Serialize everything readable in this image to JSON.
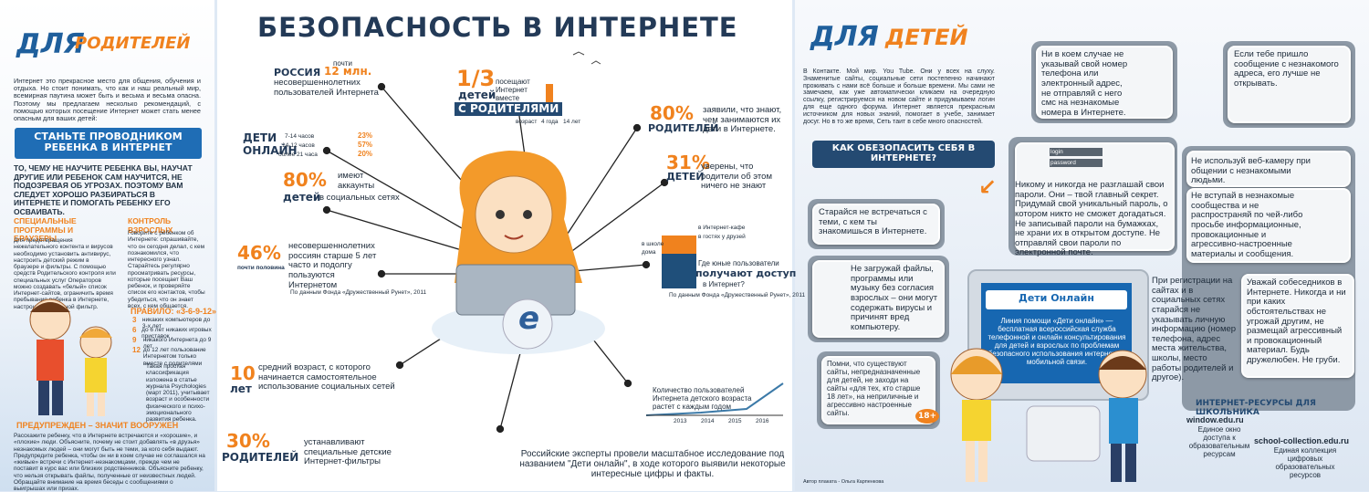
{
  "parents": {
    "title_a": "ДЛЯ",
    "title_b": "РОДИТЕЛЕЙ",
    "intro": "Интернет это прекрасное место для общения, обучения и отдыха. Но стоит понимать, что как и наш реальный мир, всемирная паутина может быть и весьма и весьма опасна. Поэтому мы предлагаем несколько рекомендаций, с помощью которых посещение Интернет может стать менее опасным для ваших детей:",
    "guide": "СТАНЬТЕ ПРОВОДНИКОМ РЕБЕНКА В ИНТЕРНЕТ",
    "guide_text": "ТО, ЧЕМУ НЕ НАУЧИТЕ РЕБЕНКА ВЫ, НАУЧАТ ДРУГИЕ ИЛИ РЕБЕНОК САМ НАУЧИТСЯ, НЕ ПОДОЗРЕВАЯ ОБ УГРОЗАХ. ПОЭТОМУ ВАМ СЛЕДУЕТ ХОРОШО РАЗБИРАТЬСЯ В ИНТЕРНЕТЕ И ПОМОГАТЬ РЕБЕНКУ ЕГО ОСВАИВАТЬ.",
    "programs_title": "СПЕЦИАЛЬНЫЕ ПРОГРАММЫ И БРАУЗЕРЫ",
    "programs_text": "Для предотвращения нежелательного контента и вирусов необходимо установить антивирус, настроить детский режим в браузере и фильтры. С помощью средств Родительского контроля или специальных услуг Операторов можно создавать «белый» список Интернет-сайтов, ограничить время пребывания ребенка в Интернете, настроить возрастной фильтр.",
    "control_title": "КОНТРОЛЬ ВЗРОСЛЫХ",
    "control_text": "Говорите с ребенком об Интернете: спрашивайте, что он сегодня делал, с кем познакомился, что интересного узнал. Старайтесь регулярно просматривать ресурсы, которые посещает Ваш ребенок, и проверяйте список его контактов, чтобы убедиться, что он знает всех, с кем общается.",
    "rule_title": "ПРАВИЛО: «3-6-9-12»",
    "rule_nums": [
      "3",
      "6",
      "9",
      "12"
    ],
    "rule_items": [
      "никаких компьютеров до 3-х лет",
      "до 6 лет никаких игровых приставок",
      "никакого Интернета до 9 лет",
      "до 12 лет пользование Интернетом только вместе с родителями"
    ],
    "rule_note": "Такая простая классификация изложена в статье журнала Psychologies (март 2011), учитывает возраст и особенности физического и психо-эмоционального развития ребенка.",
    "warned_title": "ПРЕДУПРЕЖДЕН – ЗНАЧИТ ВООРУЖЕН",
    "warned_text": "Расскажите ребенку, что в Интернете встречаются и «хорошие», и «плохие» люди. Объясните, почему не стоит добавлять «в друзья» незнакомых людей – они могут быть не теми, за кого себя выдают. Предупредите ребенка, чтобы он ни в коем случае не соглашался на «живые» встречи с Интернет-незнакомцами, прежде чем не поставит в курс вас или близких родственников. Объясните ребенку, что нельзя открывать файлы, полученные от неизвестных людей. Обращайте внимание на время беседы с сообщениями о выигрышах или призах."
  },
  "center": {
    "title": "БЕЗОПАСНОСТЬ В ИНТЕРНЕТЕ",
    "russia": "РОССИЯ",
    "almost": "почти",
    "mln": "12 млн.",
    "russia_text": "несовершеннолетних пользователей Интернета",
    "third": "1/3",
    "third_kids": "детей",
    "third_text": "посещают Интернет вместе",
    "third_parents": "С РОДИТЕЛЯМИ",
    "third_age": "возраст",
    "third_a1": "4 года",
    "third_a2": "14 лет",
    "p80": "80%",
    "p80_label": "РОДИТЕЛЕЙ",
    "p80_text": "заявили, что знают, чем занимаются их дети в Интернете.",
    "online_a": "ДЕТИ",
    "online_b": "ОНЛАЙН",
    "online_rows": [
      [
        "7-14 часов",
        "23%"
      ],
      [
        "14-12 часов",
        "57%"
      ],
      [
        "более 21 часа",
        "20%"
      ]
    ],
    "k80": "80%",
    "k80_text": "имеют аккаунты",
    "k80_kids": "детей",
    "k80_social": "в социальных сетях",
    "p31": "31%",
    "p31_label": "ДЕТЕЙ",
    "p31_text": "уверены, что родители об этом ничего не знают",
    "p46": "46%",
    "p46_label": "почти половина",
    "p46_text": "несовершеннолетних россиян старше 5 лет часто и подолгу пользуются Интернетом",
    "source1": "По данным Фонда «Дружественный Рунет», 2011",
    "access_cafe": "в Интернет-кафе",
    "access_friends": "в гостях у друзей",
    "access_school": "в школе",
    "access_home": "дома",
    "access_q1": "Где юные пользователи",
    "access_q2": "получают доступ",
    "access_q3": "в Интернет?",
    "source2": "По данным Фонда «Дружественный Рунет», 2011",
    "age10_a": "10",
    "age10_b": "лет",
    "age10_text": "средний возраст, с которого начинается самостоятельное использование социальных сетей",
    "growth_text": "Количество пользователей Интернета детского возраста растет с каждым годом",
    "years": [
      "2013",
      "2014",
      "2015",
      "2016"
    ],
    "p30": "30%",
    "p30_label": "РОДИТЕЛЕЙ",
    "p30_text": "устанавливают специальные детские Интернет-фильтры",
    "study": "Российские эксперты провели масштабное исследование под названием \"Дети онлайн\", в ходе которого выявили некоторые интересные цифры и факты.",
    "logo": "e",
    "author": "Автор плаката - Ольга Карпенкова"
  },
  "kids": {
    "title_a": "ДЛЯ",
    "title_b": "ДЕТЕЙ",
    "intro": "В Контакте. Мой мир. You Tube. Они у всех на слуху. Знаменитые сайты, социальные сети постепенно начинают проживать с нами всё больше и больше времени. Мы сами не замечаем, как уже автоматически кликаем на очередную ссылку, регистрируемся на новом сайте и придумываем логин для еще одного форума. Интернет является прекрасным источником для новых знаний, помогает в учебе, занимает досуг. Но в то же время, Сеть таит в себе много опасностей.",
    "how": "КАК ОБЕЗОПАСИТЬ СЕБЯ В ИНТЕРНЕТЕ?",
    "meet": "Старайся не встречаться с теми, с кем ты знакомишься в Интернете.",
    "files": "Не загружай файлы, программы или музыку без согласия взрослых – они могут содержать вирусы и причинят вред компьютеру.",
    "sites": "Помни, что существуют сайты, непредназначенные для детей, не заходи на сайты «для тех, кто старше 18 лет», на неприличные и агрессивно настроенные сайты.",
    "adult": "18+",
    "phone": "Ни в коем случае не указывай свой номер телефона или электронный адрес, не отправляй с него смс на незнакомые номера в Интернете.",
    "message": "Если тебе пришло сообщение с незнакомого адреса, его лучше не открывать.",
    "login": "login",
    "password": "password",
    "passwords": "Никому и никогда не разглашай свои пароли. Они – твой главный секрет. Придумай свой уникальный пароль, о котором никто не сможет догадаться. Не записывай пароли на бумажках, не храни их в открытом доступе. Не отправляй свои пароли по электронной почте.",
    "webcam": "Не используй веб-камеру при общении с незнакомыми людьми.",
    "groups": "Не вступай в незнакомые сообщества и не распространяй по чей-либо просьбе информационные, провокационные и агрессивно-настроенные материалы и сообщения.",
    "register": "При регистрации на сайтах и в социальных сетях старайся не указывать личную информацию (номер телефона, адрес места жительства, школы, место работы родителей и другое).",
    "respect": "Уважай собеседников в Интернете. Никогда и ни при каких обстоятельствах не угрожай другим, не размещай агрессивный и провокационный материал. Будь дружелюбен. Не груби.",
    "screen_title": "Дети Онлайн",
    "screen_text": "Линия помощи «Дети онлайн» — бесплатная всероссийская служба телефонной и онлайн консультирования для детей и взрослых по проблемам безопасного использования интернета и мобильной связи.",
    "res_title": "ИНТЕРНЕТ-РЕСУРСЫ ДЛЯ ШКОЛЬНИКА",
    "res1": "window.edu.ru",
    "res1_text": "Единое окно доступа к образовательным ресурсам",
    "res2": "school-collection.edu.ru",
    "res2_text": "Единая коллекция цифровых образовательных ресурсов"
  }
}
